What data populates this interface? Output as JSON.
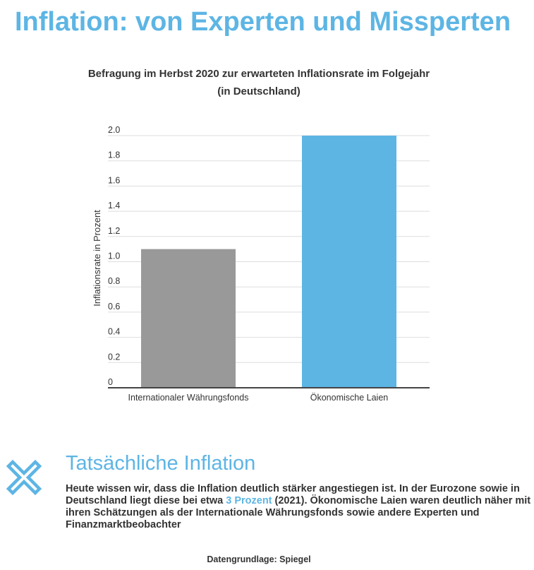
{
  "page": {
    "title": "Inflation: von Experten und Missperten"
  },
  "chart_data": {
    "type": "bar",
    "title": "Befragung im Herbst 2020 zur erwarteten Inflationsrate im Folgejahr",
    "subtitle": "(in Deutschland)",
    "categories": [
      "Internationaler Währungsfonds",
      "Ökonomische Laien"
    ],
    "values": [
      1.1,
      2.0
    ],
    "colors": [
      "#999999",
      "#5db5e4"
    ],
    "ylabel": "Inflationsrate in Prozent",
    "xlabel": "",
    "ylim": [
      0,
      2.0
    ],
    "yticks": [
      0,
      0.2,
      0.4,
      0.6,
      0.8,
      1.0,
      1.2,
      1.4,
      1.6,
      1.8,
      2.0
    ],
    "ytick_labels": [
      "0",
      "0.2",
      "0.4",
      "0.6",
      "0.8",
      "1.0",
      "1.2",
      "1.4",
      "1.6",
      "1.8",
      "2.0"
    ],
    "grid": true,
    "legend": false
  },
  "section": {
    "icon": "close-x-icon",
    "heading": "Tatsächliche Inflation",
    "text_before": "Heute wissen wir, dass die Inflation deutlich stärker angestiegen ist. In der Eurozone sowie in Deutschland liegt diese bei etwa ",
    "highlight": "3 Prozent",
    "text_after": " (2021). Ökonomische Laien waren deutlich näher mit ihren Schätzungen als der Internationale Währungsfonds sowie andere Experten und Finanzmarktbeobachter"
  },
  "source": "Datengrundlage: Spiegel",
  "colors": {
    "accent": "#5db5e4",
    "grey_bar": "#999999",
    "text": "#333333",
    "grid": "#dddddd",
    "axis": "#444444"
  }
}
